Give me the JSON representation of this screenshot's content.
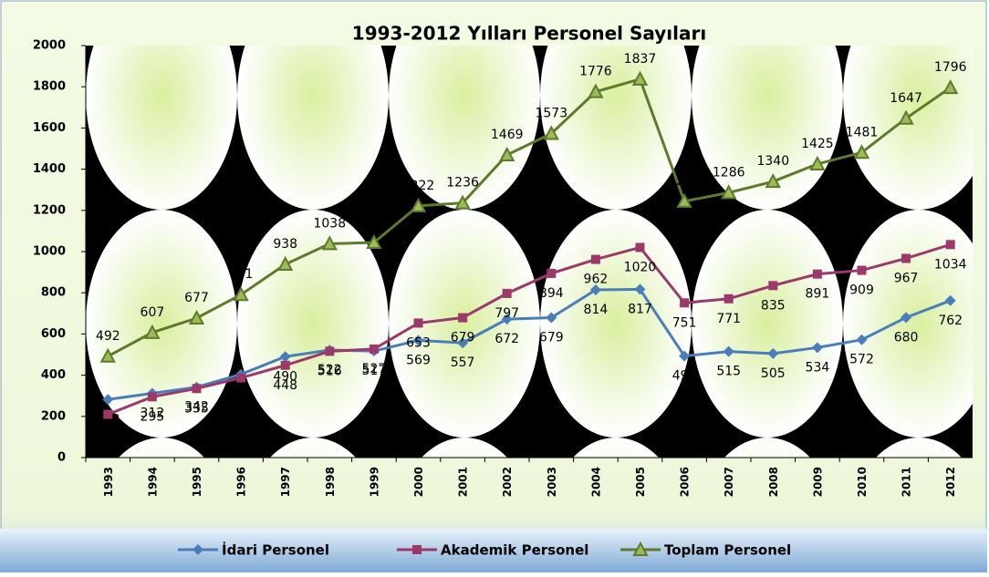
{
  "chart_data": {
    "type": "line",
    "title": "1993-2012 Yılları Personel Sayıları",
    "categories": [
      "1993",
      "1994",
      "1995",
      "1996",
      "1997",
      "1998",
      "1999",
      "2000",
      "2001",
      "2002",
      "2003",
      "2004",
      "2005",
      "2006",
      "2007",
      "2008",
      "2009",
      "2010",
      "2011",
      "2012"
    ],
    "series": [
      {
        "name": "İdari Personel",
        "color": "#4a7ebb",
        "marker": "diamond",
        "values": [
          282,
          312,
          342,
          404,
          490,
          522,
          517,
          569,
          557,
          672,
          679,
          814,
          817,
          493,
          515,
          505,
          534,
          572,
          680,
          762
        ]
      },
      {
        "name": "Akademik Personel",
        "color": "#9b3a6a",
        "marker": "square",
        "values": [
          210,
          295,
          335,
          387,
          448,
          516,
          527,
          653,
          679,
          797,
          894,
          962,
          1020,
          751,
          771,
          835,
          891,
          909,
          967,
          1034
        ]
      },
      {
        "name": "Toplam Personel",
        "color": "#5f7a2a",
        "marker": "triangle",
        "values": [
          492,
          607,
          677,
          791,
          938,
          1038,
          1044,
          1222,
          1236,
          1469,
          1573,
          1776,
          1837,
          1244,
          1286,
          1340,
          1425,
          1481,
          1647,
          1796
        ]
      }
    ],
    "ylim": [
      0,
      2000
    ],
    "yticks": [
      0,
      200,
      400,
      600,
      800,
      1000,
      1200,
      1400,
      1600,
      1800,
      2000
    ],
    "legend": "bottom"
  }
}
